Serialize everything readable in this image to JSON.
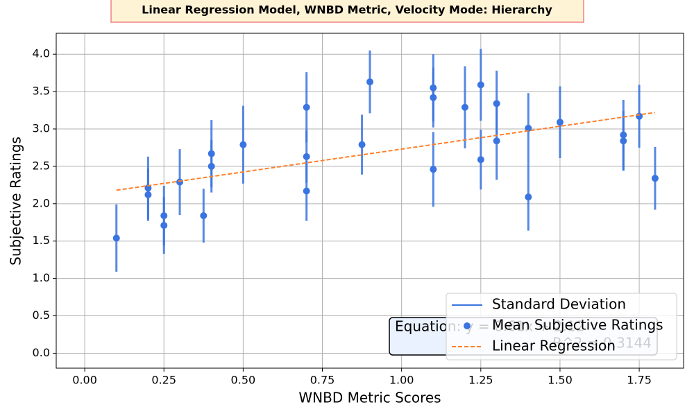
{
  "chart_data": {
    "type": "errorbar_scatter",
    "title": "Linear Regression Model, WNBD Metric, Velocity Mode: Hierarchy",
    "x_label": "WNBD Metric Scores",
    "y_label": "Subjective Ratings",
    "xlim": [
      -0.09,
      1.89
    ],
    "ylim": [
      -0.2,
      4.28
    ],
    "xticks": [
      {
        "value": 0,
        "label": "0.00"
      },
      0.25,
      {
        "value": 0.5,
        "label": "0.50"
      },
      0.75,
      {
        "value": 1,
        "label": "1.00"
      },
      1.25,
      {
        "value": 1.5,
        "label": "1.50"
      },
      1.75
    ],
    "yticks": [
      {
        "value": 0,
        "label": "0.0"
      },
      0.5,
      {
        "value": 1,
        "label": "1.0"
      },
      1.5,
      {
        "value": 2,
        "label": "2.0"
      },
      2.5,
      {
        "value": 3,
        "label": "3.0"
      },
      3.5,
      {
        "value": 4,
        "label": "4.0"
      }
    ],
    "grid": true,
    "legend": "lower right",
    "series": [
      {
        "name": "Mean Subjective Ratings",
        "error_name": "Standard Deviation",
        "color": "#3a74e0",
        "x": [
          0.1,
          0.2,
          0.2,
          0.25,
          0.25,
          0.3,
          0.375,
          0.4,
          0.4,
          0.5,
          0.7,
          0.7,
          0.7,
          0.875,
          0.9,
          1.1,
          1.1,
          1.1,
          1.2,
          1.25,
          1.25,
          1.3,
          1.3,
          1.4,
          1.4,
          1.5,
          1.7,
          1.7,
          1.75,
          1.8
        ],
        "values": [
          1.54,
          2.21,
          2.12,
          1.84,
          1.71,
          2.29,
          1.84,
          2.67,
          2.5,
          2.79,
          3.29,
          2.63,
          2.17,
          2.79,
          3.63,
          3.55,
          3.42,
          2.46,
          3.29,
          3.59,
          2.59,
          3.34,
          2.84,
          3.01,
          2.09,
          3.09,
          2.92,
          2.84,
          3.17,
          2.34
        ],
        "errors": [
          0.45,
          0.42,
          0.35,
          0.4,
          0.38,
          0.44,
          0.36,
          0.45,
          0.35,
          0.52,
          0.47,
          0.35,
          0.4,
          0.4,
          0.42,
          0.45,
          0.4,
          0.5,
          0.55,
          0.48,
          0.4,
          0.44,
          0.52,
          0.47,
          0.45,
          0.48,
          0.47,
          0.4,
          0.42,
          0.42
        ]
      },
      {
        "name": "Linear Regression",
        "color": "#ff7f2a",
        "dashed": true,
        "x": [
          0.1,
          1.8
        ],
        "values": [
          2.18,
          3.22
        ]
      }
    ],
    "equation": "Equation: y = 0.61x + 2.12",
    "r_squared": "R^2 = 0.3144"
  }
}
